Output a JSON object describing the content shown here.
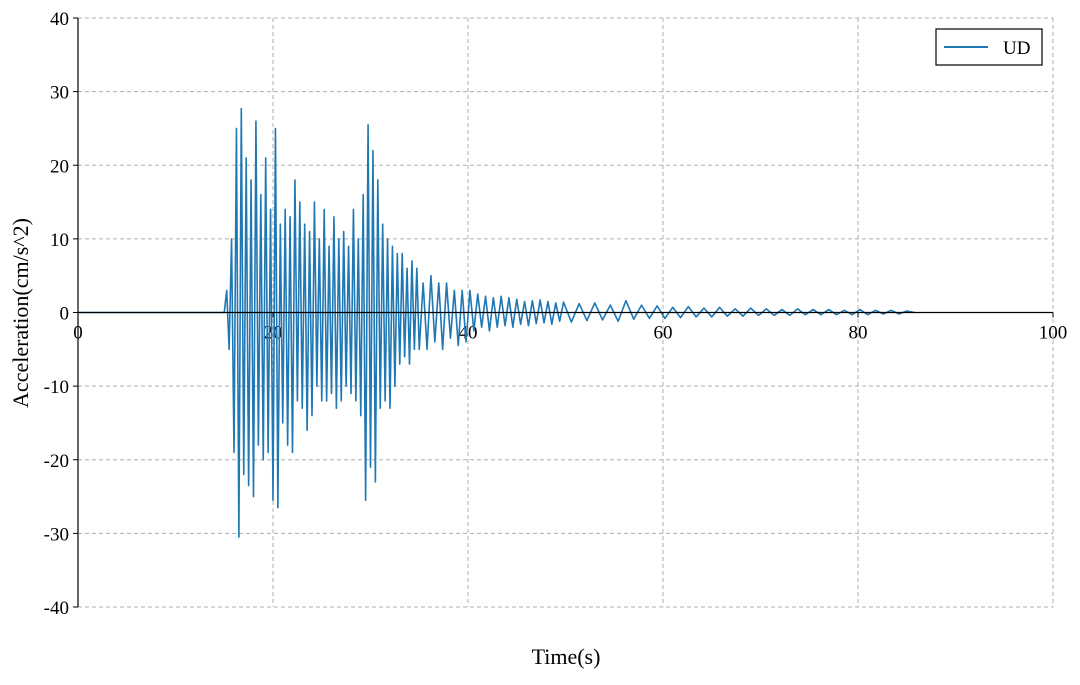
{
  "chart_data": {
    "type": "line",
    "xlabel": "Time(s)",
    "ylabel": "Acceleration(cm/s^2)",
    "x": [
      0,
      15,
      15.25,
      15.5,
      15.75,
      16,
      16.25,
      16.5,
      16.75,
      17,
      17.25,
      17.5,
      17.75,
      18,
      18.25,
      18.5,
      18.75,
      19,
      19.25,
      19.5,
      19.75,
      20,
      20.25,
      20.5,
      20.75,
      21,
      21.25,
      21.5,
      21.75,
      22,
      22.25,
      22.5,
      22.75,
      23,
      23.25,
      23.5,
      23.75,
      24,
      24.25,
      24.5,
      24.75,
      25,
      25.25,
      25.5,
      25.75,
      26,
      26.25,
      26.5,
      26.75,
      27,
      27.25,
      27.5,
      27.75,
      28,
      28.25,
      28.5,
      28.75,
      29,
      29.25,
      29.5,
      29.75,
      30,
      30.25,
      30.5,
      30.75,
      31,
      31.25,
      31.5,
      31.75,
      32,
      32.25,
      32.5,
      32.75,
      33,
      33.25,
      33.5,
      33.75,
      34,
      34.25,
      34.5,
      34.75,
      35,
      35.4,
      35.8,
      36.2,
      36.6,
      37,
      37.4,
      37.8,
      38.2,
      38.6,
      39,
      39.4,
      39.8,
      40.2,
      40.6,
      41,
      41.4,
      41.8,
      42.2,
      42.6,
      43,
      43.4,
      43.8,
      44.2,
      44.6,
      45,
      45.4,
      45.8,
      46.2,
      46.6,
      47,
      47.4,
      47.8,
      48.2,
      48.6,
      49,
      49.4,
      49.8,
      50.6,
      51.4,
      52.2,
      53,
      53.8,
      54.6,
      55.4,
      56.2,
      57,
      57.8,
      58.6,
      59.4,
      60.2,
      61,
      61.8,
      62.6,
      63.4,
      64.2,
      65,
      65.8,
      66.6,
      67.4,
      68.2,
      69,
      69.8,
      70.6,
      71.4,
      72.2,
      73,
      73.8,
      74.6,
      75.4,
      76.2,
      77,
      77.8,
      78.6,
      79.4,
      80.2,
      81,
      81.8,
      82.6,
      83.4,
      84.2,
      85,
      85.8
    ],
    "series": [
      {
        "name": "UD",
        "color": "#1f77b4",
        "values": [
          0,
          0,
          3,
          -5,
          10,
          -19,
          25,
          -30.5,
          27.7,
          -22,
          21,
          -23.5,
          18,
          -25,
          26,
          -18,
          16,
          -20,
          21,
          -19,
          14,
          -25.5,
          25,
          -26.5,
          12,
          -15,
          14,
          -18,
          13,
          -19,
          18,
          -12,
          15,
          -13,
          12,
          -16,
          11,
          -14,
          15,
          -10,
          10,
          -12,
          14,
          -12,
          9,
          -11,
          13,
          -13,
          10,
          -12,
          11,
          -10,
          9,
          -11,
          14,
          -12,
          10,
          -14,
          16,
          -25.5,
          25.5,
          -21,
          22,
          -23,
          18,
          -13,
          12,
          -12,
          10,
          -13,
          9,
          -10,
          8,
          -7,
          8,
          -6,
          6,
          -7,
          7,
          -5,
          6,
          -5,
          4,
          -5,
          5,
          -4,
          4,
          -5,
          4,
          -3.5,
          3,
          -4.5,
          3,
          -4,
          3,
          -2.5,
          2.5,
          -2,
          2.2,
          -2.5,
          2,
          -2,
          2.2,
          -1.8,
          2,
          -2,
          1.8,
          -1.6,
          1.5,
          -1.8,
          1.6,
          -1.5,
          1.7,
          -1.4,
          1.5,
          -1.6,
          1.3,
          -1.2,
          1.4,
          -1.3,
          1.2,
          -1.1,
          1.3,
          -1,
          1,
          -1.2,
          1.6,
          -0.9,
          1,
          -0.8,
          0.9,
          -0.8,
          0.7,
          -0.7,
          0.8,
          -0.6,
          0.6,
          -0.6,
          0.7,
          -0.5,
          0.5,
          -0.5,
          0.6,
          -0.4,
          0.5,
          -0.4,
          0.4,
          -0.4,
          0.5,
          -0.3,
          0.4,
          -0.3,
          0.4,
          -0.3,
          0.3,
          -0.3,
          0.4,
          -0.3,
          0.3,
          -0.2,
          0.3,
          -0.2,
          0.2,
          0
        ]
      }
    ],
    "xlim": [
      0,
      100
    ],
    "xticks": [
      0,
      20,
      40,
      60,
      80,
      100
    ],
    "ylim": [
      -40,
      40
    ],
    "yticks": [
      -40,
      -30,
      -20,
      -10,
      0,
      10,
      20,
      30,
      40
    ],
    "grid": true,
    "legend": "upper right"
  }
}
